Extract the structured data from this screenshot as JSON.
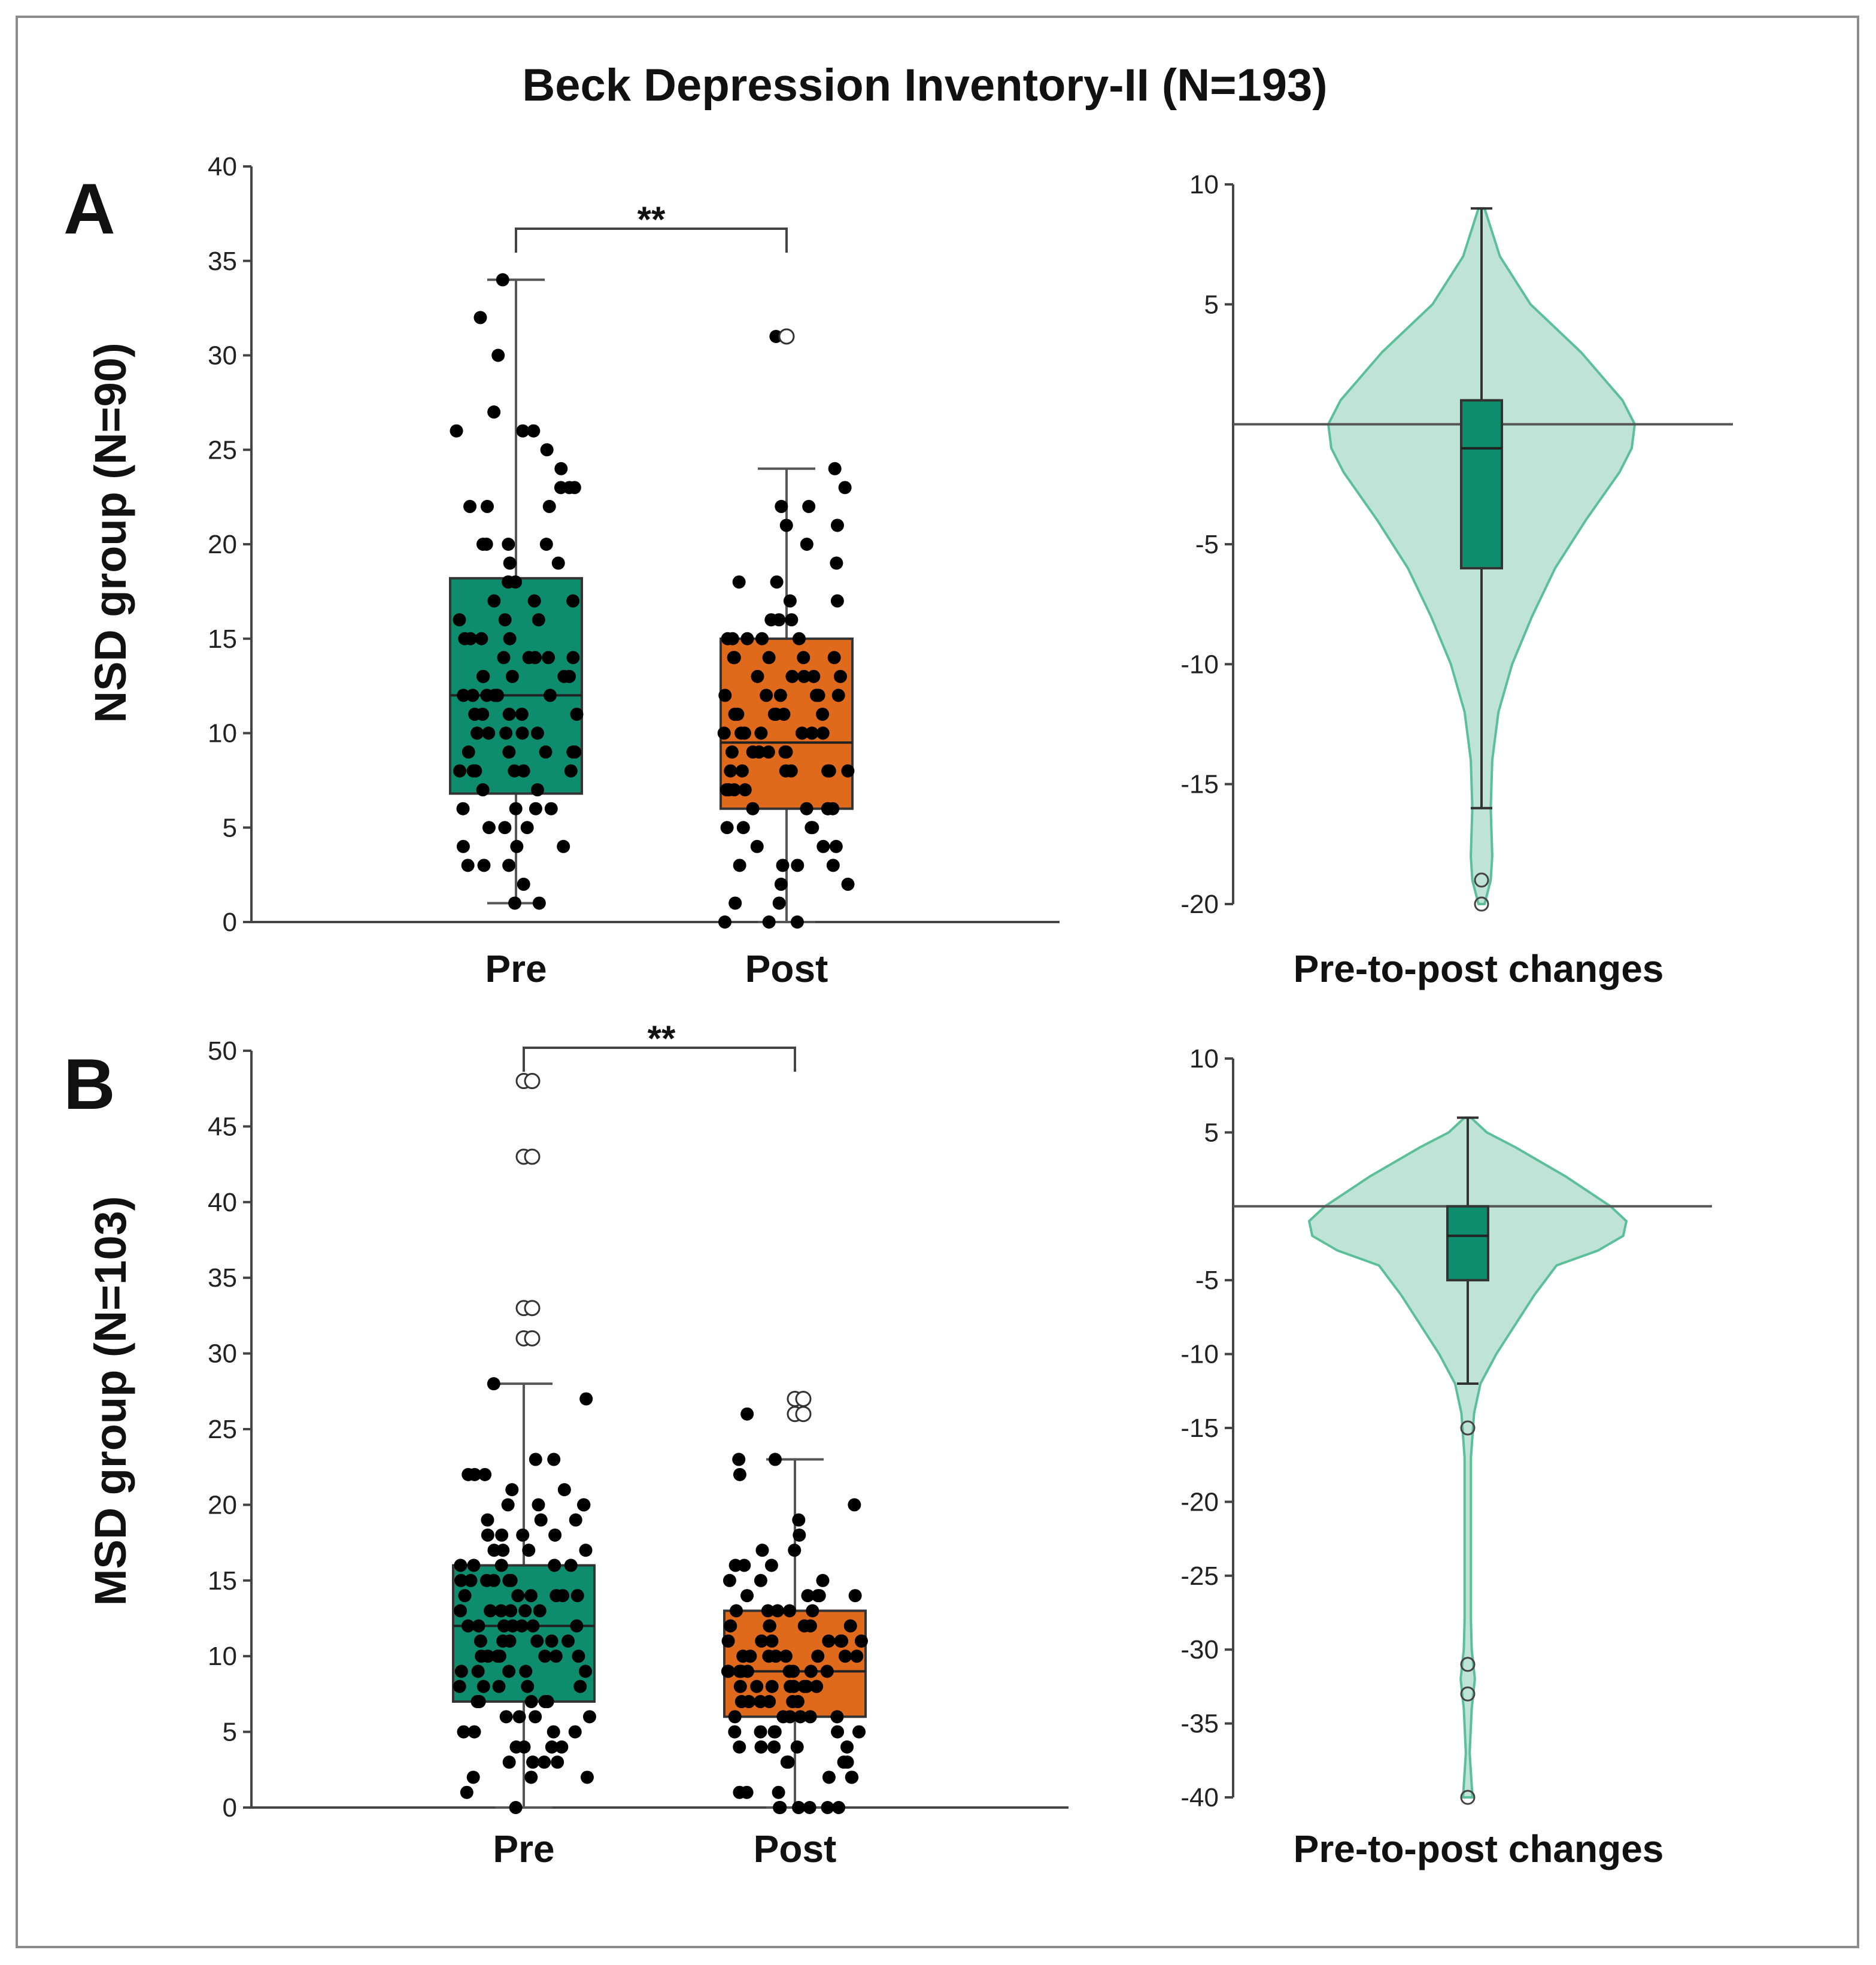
{
  "title": "Beck Depression Inventory-II (N=193)",
  "colors": {
    "pre": "#0e8c6e",
    "post": "#e06a1c",
    "violin_fill": "#bfe3d6",
    "violin_stroke": "#5cbf9c",
    "change_box": "#0e8c6e"
  },
  "chart_data": [
    {
      "panel": "A",
      "type": "box",
      "ylabel": "NSD group (N=90)",
      "ylim": [
        0,
        40
      ],
      "yticks": [
        0,
        5,
        10,
        15,
        20,
        25,
        30,
        35,
        40
      ],
      "tick_labels": [
        "0",
        "5",
        "10",
        "15",
        "20",
        "25",
        "30",
        "35",
        "40"
      ],
      "categories": [
        "Pre",
        "Post"
      ],
      "significance": "**",
      "series": [
        {
          "name": "Pre",
          "q1": 6.8,
          "median": 12,
          "q3": 18.2,
          "whisker_low": 1,
          "whisker_high": 34,
          "outliers": [],
          "points": [
            1,
            2,
            3,
            3,
            3,
            4,
            4,
            4,
            5,
            5,
            5,
            6,
            6,
            6,
            6,
            7,
            7,
            8,
            8,
            8,
            8,
            8,
            8,
            9,
            9,
            9,
            9,
            10,
            10,
            10,
            10,
            10,
            11,
            11,
            11,
            11,
            11,
            12,
            12,
            12,
            12,
            12,
            12,
            13,
            13,
            13,
            13,
            13,
            14,
            14,
            14,
            14,
            15,
            15,
            15,
            15,
            16,
            16,
            16,
            17,
            17,
            17,
            18,
            18,
            18,
            19,
            19,
            20,
            20,
            20,
            20,
            22,
            22,
            22,
            23,
            23,
            23,
            24,
            25,
            26,
            26,
            26,
            27,
            30,
            32,
            34,
            1,
            9,
            12,
            14
          ]
        },
        {
          "name": "Post",
          "q1": 6,
          "median": 9.5,
          "q3": 15,
          "whisker_low": 0,
          "whisker_high": 24,
          "outliers": [
            31
          ],
          "points": [
            0,
            0,
            0,
            1,
            1,
            2,
            2,
            3,
            3,
            3,
            3,
            4,
            4,
            4,
            5,
            5,
            5,
            5,
            6,
            6,
            6,
            6,
            7,
            7,
            7,
            7,
            8,
            8,
            8,
            8,
            8,
            8,
            9,
            9,
            9,
            9,
            9,
            10,
            10,
            10,
            10,
            10,
            10,
            11,
            11,
            11,
            11,
            11,
            12,
            12,
            12,
            12,
            12,
            13,
            13,
            13,
            13,
            14,
            14,
            14,
            14,
            15,
            15,
            15,
            15,
            15,
            16,
            16,
            16,
            17,
            17,
            18,
            18,
            19,
            20,
            21,
            21,
            22,
            22,
            23,
            24,
            31,
            9,
            10,
            11,
            12,
            13,
            8,
            14,
            6
          ]
        }
      ]
    },
    {
      "panel": "A",
      "type": "violin",
      "xlabel": "Pre-to-post changes",
      "ylim": [
        -20,
        10
      ],
      "yticks": [
        -20,
        -15,
        -10,
        -5,
        5,
        10
      ],
      "tick_labels": [
        "-20",
        "-15",
        "-10",
        "-5",
        "5",
        "10"
      ],
      "reference_line": 0,
      "box": {
        "q1": -6,
        "median": -1,
        "q3": 1,
        "whisker_low": -16,
        "whisker_high": 9
      },
      "outliers": [
        -19,
        -20
      ],
      "density": [
        {
          "y": 9,
          "w": 0.02
        },
        {
          "y": 7,
          "w": 0.12
        },
        {
          "y": 5,
          "w": 0.32
        },
        {
          "y": 3,
          "w": 0.65
        },
        {
          "y": 1,
          "w": 0.92
        },
        {
          "y": 0,
          "w": 1.0
        },
        {
          "y": -1,
          "w": 0.98
        },
        {
          "y": -2,
          "w": 0.9
        },
        {
          "y": -4,
          "w": 0.68
        },
        {
          "y": -6,
          "w": 0.48
        },
        {
          "y": -8,
          "w": 0.33
        },
        {
          "y": -10,
          "w": 0.2
        },
        {
          "y": -12,
          "w": 0.11
        },
        {
          "y": -14,
          "w": 0.07
        },
        {
          "y": -16,
          "w": 0.06
        },
        {
          "y": -18,
          "w": 0.07
        },
        {
          "y": -19,
          "w": 0.06
        },
        {
          "y": -20,
          "w": 0.02
        }
      ]
    },
    {
      "panel": "B",
      "type": "box",
      "ylabel": "MSD group (N=103)",
      "ylim": [
        0,
        50
      ],
      "yticks": [
        0,
        5,
        10,
        15,
        20,
        25,
        30,
        35,
        40,
        45,
        50
      ],
      "tick_labels": [
        "0",
        "5",
        "10",
        "15",
        "20",
        "25",
        "30",
        "35",
        "40",
        "45",
        "50"
      ],
      "categories": [
        "Pre",
        "Post"
      ],
      "significance": "**",
      "series": [
        {
          "name": "Pre",
          "q1": 7,
          "median": 12,
          "q3": 16,
          "whisker_low": 0,
          "whisker_high": 28,
          "outliers": [
            48,
            48,
            43,
            43,
            33,
            33,
            31,
            31
          ],
          "points": [
            0,
            1,
            2,
            2,
            3,
            3,
            3,
            4,
            4,
            4,
            5,
            5,
            5,
            6,
            6,
            6,
            7,
            7,
            7,
            7,
            8,
            8,
            8,
            8,
            9,
            9,
            9,
            9,
            10,
            10,
            10,
            10,
            10,
            10,
            11,
            11,
            11,
            11,
            11,
            12,
            12,
            12,
            12,
            12,
            12,
            13,
            13,
            13,
            13,
            13,
            14,
            14,
            14,
            14,
            14,
            15,
            15,
            15,
            15,
            15,
            16,
            16,
            16,
            16,
            17,
            17,
            17,
            18,
            18,
            18,
            19,
            19,
            19,
            20,
            20,
            20,
            21,
            21,
            22,
            22,
            22,
            23,
            23,
            27,
            28,
            12,
            10,
            9,
            8,
            13,
            14,
            11,
            15,
            6,
            5,
            4,
            17,
            20,
            16,
            18,
            7,
            3,
            2
          ]
        },
        {
          "name": "Post",
          "q1": 6,
          "median": 9,
          "q3": 13,
          "whisker_low": 0,
          "whisker_high": 23,
          "outliers": [
            27,
            27,
            26,
            26
          ],
          "points": [
            0,
            0,
            0,
            0,
            0,
            0,
            0,
            1,
            1,
            1,
            2,
            2,
            2,
            3,
            3,
            3,
            4,
            4,
            4,
            4,
            5,
            5,
            5,
            5,
            5,
            6,
            6,
            6,
            6,
            6,
            7,
            7,
            7,
            7,
            7,
            8,
            8,
            8,
            8,
            8,
            8,
            9,
            9,
            9,
            9,
            9,
            9,
            9,
            10,
            10,
            10,
            10,
            10,
            10,
            11,
            11,
            11,
            11,
            11,
            12,
            12,
            12,
            12,
            12,
            13,
            13,
            13,
            13,
            14,
            14,
            14,
            14,
            15,
            15,
            15,
            16,
            16,
            16,
            17,
            17,
            18,
            19,
            20,
            22,
            23,
            23,
            26,
            9,
            8,
            10,
            11,
            7,
            6,
            12,
            5,
            13,
            4,
            3,
            14,
            10,
            9,
            8,
            11
          ]
        }
      ]
    },
    {
      "panel": "B",
      "type": "violin",
      "xlabel": "Pre-to-post changes",
      "ylim": [
        -40,
        10
      ],
      "yticks": [
        -40,
        -35,
        -30,
        -25,
        -20,
        -15,
        -10,
        -5,
        5,
        10
      ],
      "tick_labels": [
        "-40",
        "-35",
        "-30",
        "-25",
        "-20",
        "-15",
        "-10",
        "-5",
        "5",
        "10"
      ],
      "reference_line": 0,
      "box": {
        "q1": -5,
        "median": -2,
        "q3": 0,
        "whisker_low": -12,
        "whisker_high": 6
      },
      "outliers": [
        -15,
        -31,
        -33,
        -40
      ],
      "density": [
        {
          "y": 6,
          "w": 0.02
        },
        {
          "y": 5,
          "w": 0.12
        },
        {
          "y": 4,
          "w": 0.3
        },
        {
          "y": 2,
          "w": 0.62
        },
        {
          "y": 0,
          "w": 0.9
        },
        {
          "y": -1,
          "w": 1.0
        },
        {
          "y": -2,
          "w": 0.98
        },
        {
          "y": -3,
          "w": 0.82
        },
        {
          "y": -4,
          "w": 0.56
        },
        {
          "y": -6,
          "w": 0.42
        },
        {
          "y": -8,
          "w": 0.3
        },
        {
          "y": -10,
          "w": 0.18
        },
        {
          "y": -12,
          "w": 0.08
        },
        {
          "y": -14,
          "w": 0.04
        },
        {
          "y": -17,
          "w": 0.02
        },
        {
          "y": -22,
          "w": 0.02
        },
        {
          "y": -28,
          "w": 0.02
        },
        {
          "y": -30,
          "w": 0.025
        },
        {
          "y": -32,
          "w": 0.045
        },
        {
          "y": -34,
          "w": 0.025
        },
        {
          "y": -37,
          "w": 0.012
        },
        {
          "y": -40,
          "w": 0.03
        }
      ]
    }
  ]
}
